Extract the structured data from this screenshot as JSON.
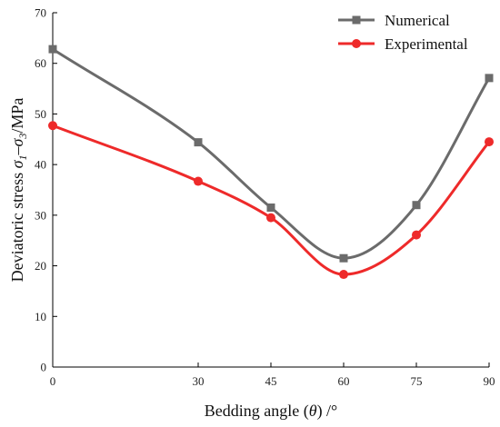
{
  "chart_data": {
    "type": "line",
    "title": "",
    "xlabel": {
      "prefix": "Bedding angle (",
      "symbol": "θ",
      "suffix": ") /°"
    },
    "ylabel": {
      "prefix": "Deviatoric stress ",
      "s1": "σ",
      "sub1": "1",
      "dash": "–",
      "s3": "σ",
      "sub3": "3",
      "suffix": "/MPa"
    },
    "xlim": [
      0,
      90
    ],
    "ylim": [
      0,
      70
    ],
    "xticks": [
      0,
      30,
      45,
      60,
      75,
      90
    ],
    "yticks": [
      0,
      10,
      20,
      30,
      40,
      50,
      60,
      70
    ],
    "legend_position": "top-right",
    "grid": false,
    "series": [
      {
        "name": "Numerical",
        "color": "#6b6b6b",
        "marker": "square",
        "x": [
          0,
          30,
          45,
          60,
          75,
          90
        ],
        "y": [
          62.8,
          44.4,
          31.5,
          21.5,
          32.0,
          57.1
        ]
      },
      {
        "name": "Experimental",
        "color": "#ee2a2a",
        "marker": "circle",
        "x": [
          0,
          30,
          45,
          60,
          75,
          90
        ],
        "y": [
          47.7,
          36.7,
          29.5,
          18.3,
          26.1,
          44.5
        ]
      }
    ]
  }
}
